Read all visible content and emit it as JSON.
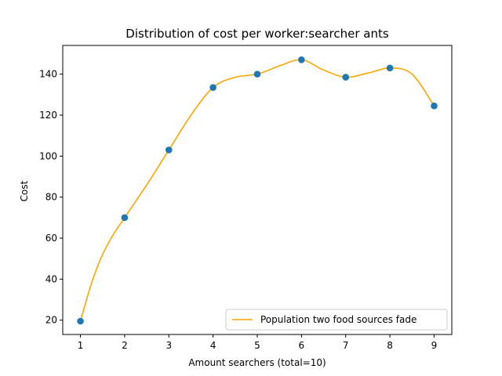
{
  "chart_data": {
    "type": "line",
    "title": "Distribution of cost per worker:searcher ants",
    "xlabel": "Amount searchers (total=10)",
    "ylabel": "Cost",
    "xlim": [
      0.6,
      9.4
    ],
    "ylim": [
      13,
      154
    ],
    "x_ticks": [
      1,
      2,
      3,
      4,
      5,
      6,
      7,
      8,
      9
    ],
    "y_ticks": [
      20,
      40,
      60,
      80,
      100,
      120,
      140
    ],
    "grid": false,
    "legend_position": "lower-right",
    "series": [
      {
        "kind": "scatter",
        "color": "#1f77b4",
        "x": [
          1,
          2,
          3,
          4,
          5,
          6,
          7,
          8,
          9
        ],
        "y": [
          19.5,
          70,
          103,
          133.5,
          140,
          147,
          138.5,
          143,
          124.5
        ]
      },
      {
        "kind": "line",
        "name": "Population two food sources fade",
        "color": "#ffa500",
        "x": [
          1,
          1.25,
          1.5,
          1.75,
          2,
          2.5,
          3,
          3.5,
          4,
          4.5,
          5,
          5.5,
          6,
          6.5,
          7,
          7.5,
          8,
          8.5,
          9
        ],
        "y": [
          19.5,
          38,
          52,
          62,
          70,
          86,
          103,
          120,
          133.5,
          138.5,
          140,
          144,
          147,
          142,
          138.5,
          140.5,
          143,
          140,
          124.5
        ]
      }
    ]
  }
}
